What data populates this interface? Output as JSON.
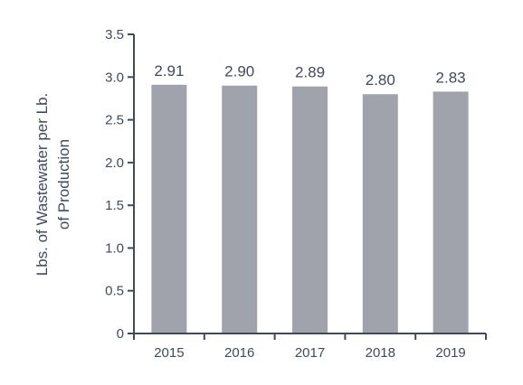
{
  "chart_data": {
    "type": "bar",
    "categories": [
      "2015",
      "2016",
      "2017",
      "2018",
      "2019"
    ],
    "values": [
      2.91,
      2.9,
      2.89,
      2.8,
      2.83
    ],
    "data_labels": [
      "2.91",
      "2.90",
      "2.89",
      "2.80",
      "2.83"
    ],
    "y_ticks": [
      "0",
      "0.5",
      "1.0",
      "1.5",
      "2.0",
      "2.5",
      "3.0",
      "3.5"
    ],
    "y_tick_values": [
      0,
      0.5,
      1.0,
      1.5,
      2.0,
      2.5,
      3.0,
      3.5
    ],
    "ylim": [
      0,
      3.5
    ],
    "ylabel_line1": "Lbs. of Wastewater per Lb.",
    "ylabel_line2": "of Production",
    "title": "",
    "xlabel": "",
    "grid": false,
    "legend": "none",
    "colors": {
      "bar": "#a0a3ab",
      "axis": "#3f4a5c",
      "text": "#3f4a5c"
    }
  }
}
